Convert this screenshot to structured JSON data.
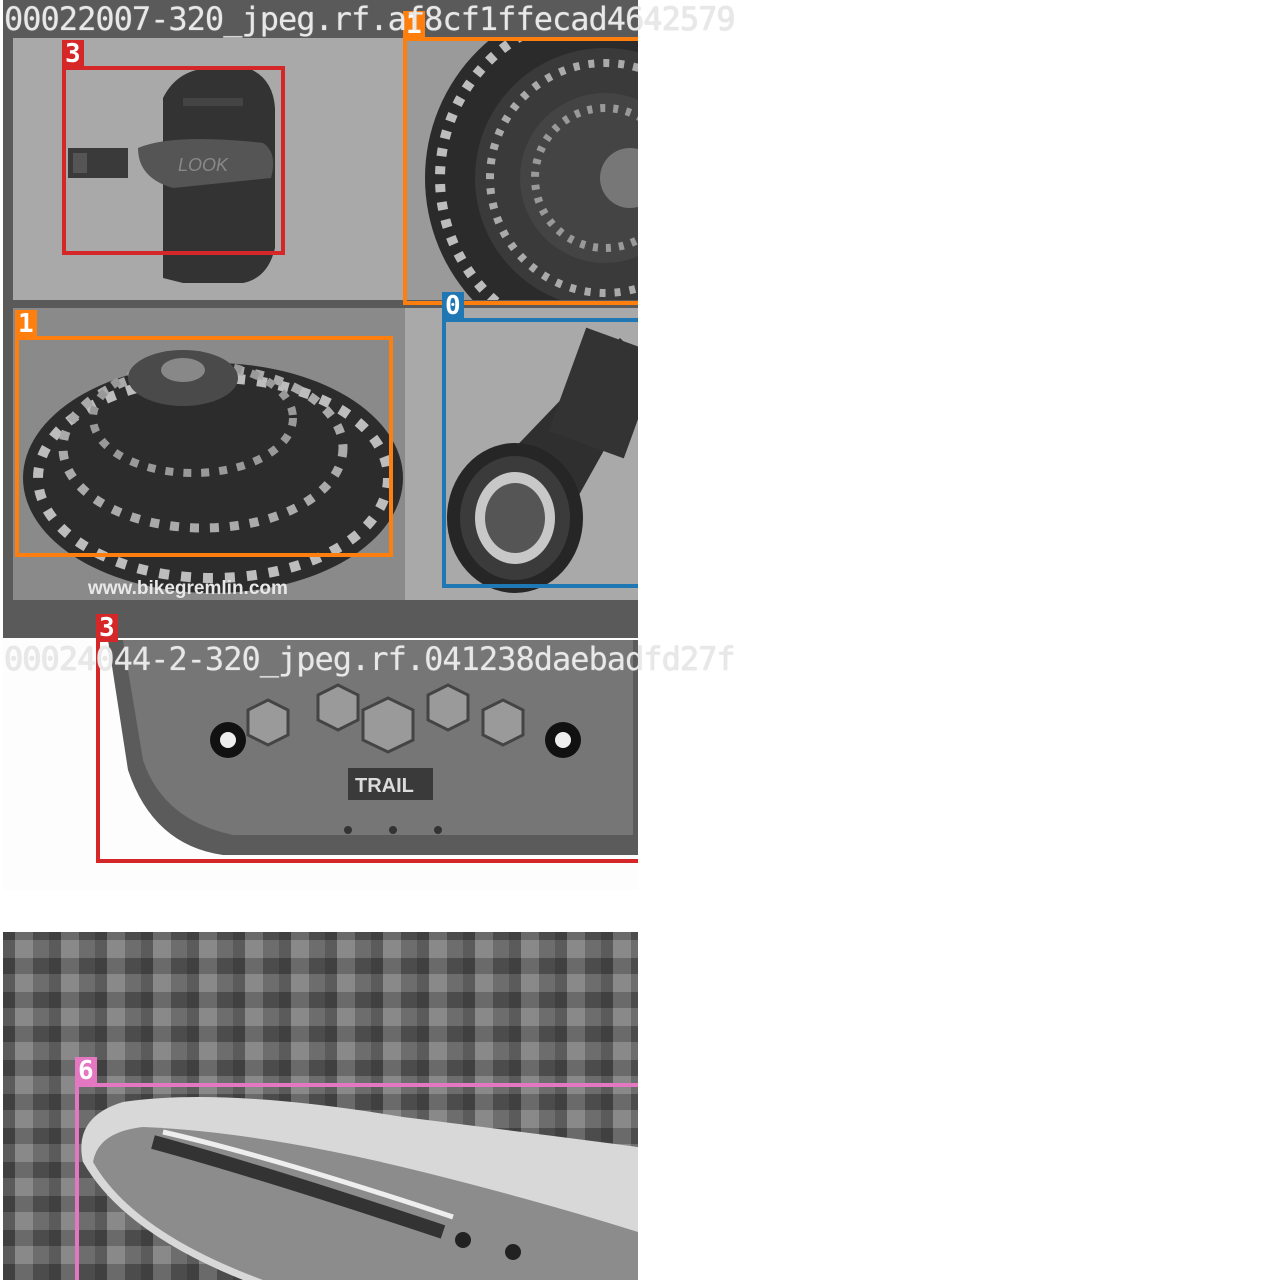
{
  "tiles": [
    {
      "filename": "00022007-320_jpeg.rf.af8cf1ffecad4642579",
      "watermark": "www.bikegremlin.com",
      "pedal_brand": "LOOK",
      "labels": [
        "3",
        "1",
        "1",
        "0"
      ]
    },
    {
      "filename": "00024044-2-320_jpeg.rf.041238daebadfd27f",
      "pedal_text": "TRAIL",
      "labels": [
        "3"
      ]
    },
    {
      "filename": "",
      "labels": [
        "6"
      ]
    }
  ],
  "colors": {
    "class0": "#1f77b4",
    "class1": "#ff7f0e",
    "class3": "#d62728",
    "class6": "#e377c2"
  }
}
